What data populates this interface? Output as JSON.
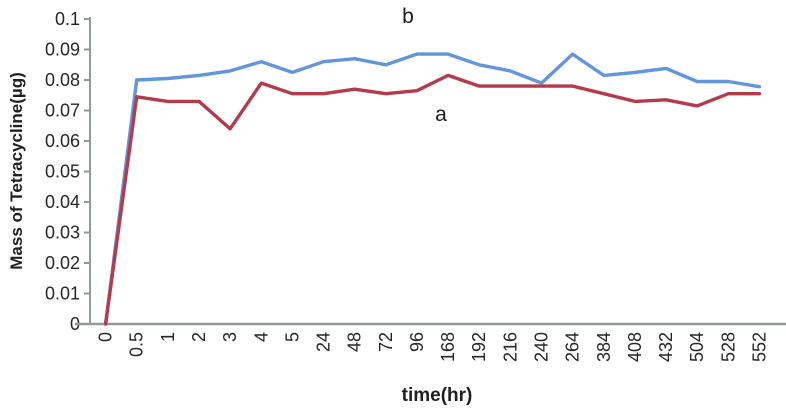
{
  "chart_data": {
    "type": "line",
    "title": "",
    "xlabel": "time(hr)",
    "ylabel": "Mass of Tetracycline(µg)",
    "categories": [
      "0",
      "0.5",
      "1",
      "2",
      "3",
      "4",
      "5",
      "24",
      "48",
      "72",
      "96",
      "168",
      "192",
      "216",
      "240",
      "264",
      "384",
      "408",
      "432",
      "504",
      "528",
      "552"
    ],
    "y_tick_labels": [
      "0",
      "0.01",
      "0.02",
      "0.03",
      "0.04",
      "0.05",
      "0.06",
      "0.07",
      "0.08",
      "0.09",
      "0.1"
    ],
    "y_tick_values": [
      0,
      0.01,
      0.02,
      0.03,
      0.04,
      0.05,
      0.06,
      0.07,
      0.08,
      0.09,
      0.1
    ],
    "ylim": [
      0,
      0.1
    ],
    "grid": false,
    "legend_position": "none",
    "series": [
      {
        "name": "b",
        "color": "#6296dc",
        "values": [
          0,
          0.08,
          0.0805,
          0.0815,
          0.083,
          0.086,
          0.0825,
          0.086,
          0.087,
          0.085,
          0.0885,
          0.0885,
          0.085,
          0.083,
          0.079,
          0.0885,
          0.0815,
          0.0825,
          0.0838,
          0.0795,
          0.0795,
          0.0778
        ]
      },
      {
        "name": "a",
        "color": "#b43b4c",
        "values": [
          0,
          0.0745,
          0.073,
          0.073,
          0.064,
          0.079,
          0.0755,
          0.0755,
          0.077,
          0.0755,
          0.0765,
          0.0815,
          0.078,
          0.078,
          0.078,
          0.078,
          0.0755,
          0.073,
          0.0735,
          0.0715,
          0.0755,
          0.0755
        ]
      }
    ],
    "annotations": [
      {
        "text": "b",
        "x": 408,
        "y": 23
      },
      {
        "text": "a",
        "x": 441,
        "y": 121
      }
    ],
    "colors": {
      "axis": "#8f9b98",
      "text": "#1f1f1f"
    }
  }
}
